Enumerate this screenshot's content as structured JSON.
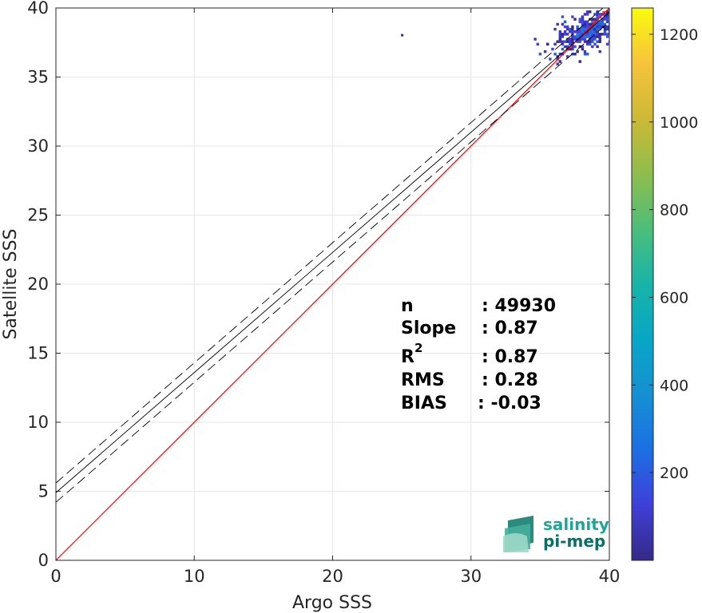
{
  "chart_data": {
    "type": "heatmap",
    "title": "",
    "xlabel": "Argo SSS",
    "ylabel": "Satellite SSS",
    "xlim": [
      0,
      40
    ],
    "ylim": [
      0,
      40
    ],
    "xticks": [
      0,
      10,
      20,
      30,
      40
    ],
    "yticks": [
      0,
      5,
      10,
      15,
      20,
      25,
      30,
      35,
      40
    ],
    "grid": true,
    "colorbar": {
      "range": [
        0,
        1260
      ],
      "ticks": [
        200,
        400,
        600,
        800,
        1000,
        1200
      ],
      "colormap": "parula"
    },
    "density_cluster": {
      "x_range": [
        34,
        40
      ],
      "y_range": [
        35.5,
        40
      ],
      "peak_count": 1260,
      "outlier": {
        "x": 25,
        "y": 38
      }
    },
    "lines": [
      {
        "name": "identity",
        "x": [
          0,
          40
        ],
        "y": [
          0,
          40
        ],
        "color": "#ff0000",
        "style": "solid"
      },
      {
        "name": "fit",
        "x": [
          0,
          40
        ],
        "y": [
          4.9,
          39.7
        ],
        "color": "#000000",
        "style": "solid"
      },
      {
        "name": "fit-upper",
        "x": [
          0,
          40
        ],
        "y": [
          5.6,
          40.4
        ],
        "color": "#000000",
        "style": "dashed"
      },
      {
        "name": "fit-lower",
        "x": [
          0,
          40
        ],
        "y": [
          4.2,
          39.0
        ],
        "color": "#000000",
        "style": "dashed"
      }
    ],
    "stats": {
      "n_label": "n",
      "n_value": ": 49930",
      "slope_label": "Slope",
      "slope_value": ": 0.87",
      "r2_label": "R",
      "r2_sup": "2",
      "r2_value": ": 0.87",
      "rms_label": "RMS",
      "rms_value": ": 0.28",
      "bias_label": "BIAS",
      "bias_value": ": -0.03"
    }
  },
  "logo": {
    "line1": "salinity",
    "line2": "pi-mep"
  },
  "colors": {
    "identity": "#ff0000",
    "logo_line1": "#1aa79a",
    "logo_line2": "#0f6e63"
  }
}
